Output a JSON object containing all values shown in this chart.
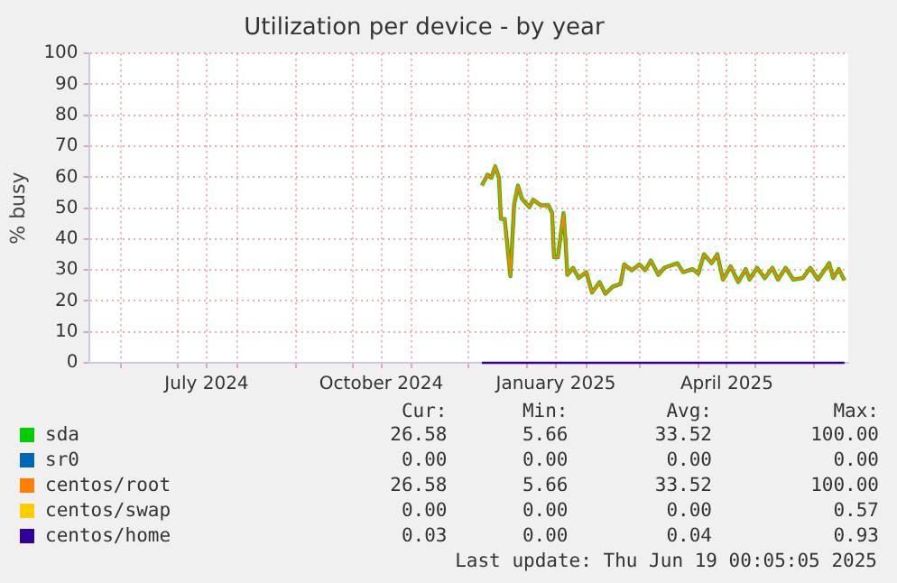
{
  "chart_data": {
    "type": "line",
    "title": "Utilization per device - by year",
    "ylabel": "% busy",
    "x": [
      "2024-12-08",
      "2024-12-11",
      "2024-12-13",
      "2024-12-15",
      "2024-12-17",
      "2024-12-18",
      "2024-12-20",
      "2024-12-23",
      "2024-12-25",
      "2024-12-27",
      "2024-12-29",
      "2025-01-02",
      "2025-01-04",
      "2025-01-08",
      "2025-01-12",
      "2025-01-14",
      "2025-01-15",
      "2025-01-17",
      "2025-01-20",
      "2025-01-21",
      "2025-01-22",
      "2025-01-25",
      "2025-01-28",
      "2025-02-01",
      "2025-02-04",
      "2025-02-08",
      "2025-02-11",
      "2025-02-15",
      "2025-02-19",
      "2025-02-21",
      "2025-02-25",
      "2025-03-01",
      "2025-03-04",
      "2025-03-07",
      "2025-03-11",
      "2025-03-14",
      "2025-03-21",
      "2025-03-24",
      "2025-03-29",
      "2025-04-01",
      "2025-04-04",
      "2025-04-08",
      "2025-04-11",
      "2025-04-14",
      "2025-04-18",
      "2025-04-22",
      "2025-04-26",
      "2025-04-28",
      "2025-05-02",
      "2025-05-06",
      "2025-05-10",
      "2025-05-13",
      "2025-05-17",
      "2025-05-21",
      "2025-05-26",
      "2025-05-30",
      "2025-06-03",
      "2025-06-09",
      "2025-06-11",
      "2025-06-14",
      "2025-06-17"
    ],
    "series": [
      {
        "name": "sda",
        "color": "#00cc00",
        "values": [
          57.3,
          60.8,
          59.8,
          63.5,
          59.8,
          46.5,
          46.5,
          28,
          51.2,
          57.3,
          53.1,
          50.3,
          52.7,
          50.9,
          50.9,
          48.4,
          34.1,
          34.1,
          48.4,
          39.8,
          28.4,
          30.7,
          27.4,
          29.3,
          22.7,
          26.1,
          22.3,
          24.6,
          25.5,
          31.8,
          29.9,
          31.8,
          29.9,
          33.1,
          28.4,
          30.7,
          32.2,
          29.3,
          30.3,
          28.8,
          35.1,
          32.2,
          35.1,
          26.9,
          31.2,
          26.1,
          30.3,
          26.9,
          30.7,
          27.4,
          30.7,
          26.9,
          30.7,
          26.9,
          27.4,
          30.7,
          26.9,
          32.2,
          27.4,
          30.3,
          26.6
        ]
      },
      {
        "name": "sr0",
        "color": "#0066b3",
        "values": [
          null,
          null,
          null,
          null,
          null,
          null,
          null,
          null,
          null,
          null,
          null,
          null,
          null,
          null,
          null,
          null,
          null,
          null,
          null,
          null,
          null,
          null,
          null,
          null,
          null,
          null,
          null,
          null,
          null,
          null,
          null,
          null,
          null,
          null,
          null,
          null,
          null,
          null,
          null,
          null,
          null,
          null,
          null,
          null,
          null,
          null,
          null,
          null,
          null,
          null,
          null,
          null,
          null,
          null,
          null,
          null,
          null,
          null,
          null,
          null,
          null
        ]
      },
      {
        "name": "centos/root",
        "color": "#ff8000",
        "values": [
          57.3,
          60.8,
          59.8,
          63.5,
          59.8,
          46.5,
          46.5,
          28,
          51.2,
          57.3,
          53.1,
          50.3,
          52.7,
          50.9,
          50.9,
          48.4,
          34.1,
          34.1,
          48.4,
          39.8,
          28.4,
          30.7,
          27.4,
          29.3,
          22.7,
          26.1,
          22.3,
          24.6,
          25.5,
          31.8,
          29.9,
          31.8,
          29.9,
          33.1,
          28.4,
          30.7,
          32.2,
          29.3,
          30.3,
          28.8,
          35.1,
          32.2,
          35.1,
          26.9,
          31.2,
          26.1,
          30.3,
          26.9,
          30.7,
          27.4,
          30.7,
          26.9,
          30.7,
          26.9,
          27.4,
          30.7,
          26.9,
          32.2,
          27.4,
          30.3,
          26.6
        ]
      },
      {
        "name": "centos/swap",
        "color": "#ffcc00",
        "values": [
          null,
          null,
          null,
          null,
          null,
          null,
          null,
          null,
          null,
          null,
          null,
          null,
          null,
          null,
          null,
          null,
          null,
          null,
          null,
          null,
          null,
          null,
          null,
          null,
          null,
          null,
          null,
          null,
          null,
          null,
          null,
          null,
          null,
          null,
          null,
          null,
          null,
          null,
          null,
          null,
          null,
          null,
          null,
          null,
          null,
          null,
          null,
          null,
          null,
          null,
          null,
          null,
          null,
          null,
          null,
          null,
          null,
          null,
          null,
          null,
          null
        ]
      },
      {
        "name": "centos/home",
        "color": "#330099",
        "x": [
          "2024-12-08",
          "2025-06-17"
        ],
        "values": [
          0,
          0
        ]
      }
    ],
    "xlim": [
      "2024-05-15",
      "2025-06-19"
    ],
    "xticks": [
      {
        "value": "2024-06-01",
        "label": null
      },
      {
        "value": "2024-07-01",
        "label": null
      },
      {
        "value": "2024-07-16",
        "label": "July 2024"
      },
      {
        "value": "2024-08-01",
        "label": null
      },
      {
        "value": "2024-09-01",
        "label": null
      },
      {
        "value": "2024-10-01",
        "label": null
      },
      {
        "value": "2024-10-16",
        "label": "October 2024"
      },
      {
        "value": "2024-11-01",
        "label": null
      },
      {
        "value": "2024-12-01",
        "label": null
      },
      {
        "value": "2025-01-01",
        "label": null
      },
      {
        "value": "2025-01-16",
        "label": "January 2025"
      },
      {
        "value": "2025-02-01",
        "label": null
      },
      {
        "value": "2025-03-01",
        "label": null
      },
      {
        "value": "2025-04-01",
        "label": null
      },
      {
        "value": "2025-04-16",
        "label": "April 2025"
      },
      {
        "value": "2025-05-01",
        "label": null
      },
      {
        "value": "2025-06-01",
        "label": null
      }
    ],
    "ylim": [
      0,
      100
    ],
    "yticks": [
      0,
      10,
      20,
      30,
      40,
      50,
      60,
      70,
      80,
      90,
      100
    ],
    "grid": true,
    "legend": "bottom",
    "marker": "none",
    "line_style": "solid",
    "annotations": [
      "Cur:",
      "Min:",
      "Avg:",
      "Max:",
      "26.58",
      "5.66",
      "33.52",
      "100.00",
      "0.00",
      "0.00",
      "0.00",
      "0.00",
      "26.58",
      "5.66",
      "33.52",
      "100.00",
      "0.00",
      "0.00",
      "0.00",
      "0.57",
      "0.03",
      "0.00",
      "0.04",
      "0.93",
      "Last update: Thu Jun 19 00:05:05 2025"
    ]
  }
}
